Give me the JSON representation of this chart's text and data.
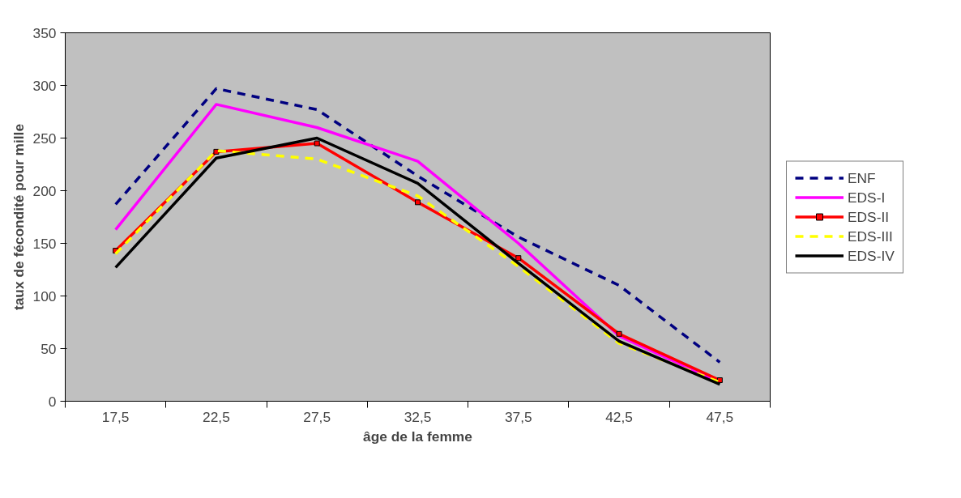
{
  "chart_data": {
    "type": "line",
    "xlabel": "âge de la femme",
    "ylabel": "taux de fécondité pour mille",
    "categories": [
      "17,5",
      "22,5",
      "27,5",
      "32,5",
      "37,5",
      "42,5",
      "47,5"
    ],
    "ylim": [
      0,
      350
    ],
    "yticks": [
      0,
      50,
      100,
      150,
      200,
      250,
      300,
      350
    ],
    "grid": false,
    "legend": "right",
    "series": [
      {
        "name": "ENF",
        "color": "#000080",
        "line_style": "dashed",
        "marker": "none",
        "values": [
          187,
          297,
          277,
          214,
          156,
          110,
          37
        ]
      },
      {
        "name": "EDS-I",
        "color": "#ff00ff",
        "line_style": "solid",
        "marker": "none",
        "values": [
          163,
          282,
          260,
          228,
          150,
          62,
          18
        ]
      },
      {
        "name": "EDS-II",
        "color": "#ff0000",
        "line_style": "solid",
        "marker": "square",
        "values": [
          143,
          237,
          245,
          189,
          136,
          64,
          20
        ]
      },
      {
        "name": "EDS-III",
        "color": "#ffff00",
        "line_style": "dashed",
        "marker": "none",
        "values": [
          140,
          238,
          230,
          195,
          128,
          55,
          18
        ]
      },
      {
        "name": "EDS-IV",
        "color": "#000000",
        "line_style": "solid",
        "marker": "none",
        "values": [
          127,
          231,
          250,
          207,
          131,
          57,
          16
        ]
      }
    ]
  }
}
